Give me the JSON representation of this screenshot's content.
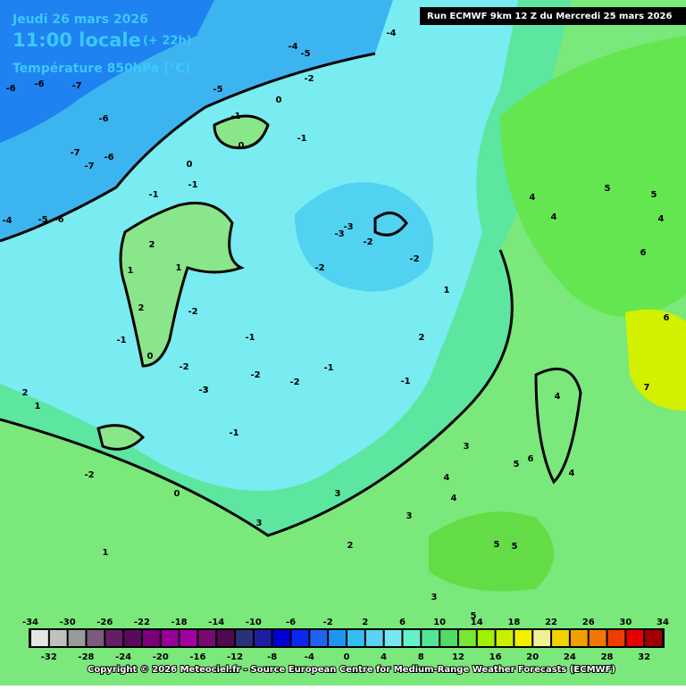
{
  "header": {
    "date": "Jeudi 26 mars 2026",
    "time": "11:00 locale",
    "offset": "(+ 22h)",
    "field": "Température 850hPa (°C)",
    "run": "Run ECMWF 9km 12 Z du Mercredi 25 mars 2026"
  },
  "map_labels": [
    -6,
    -6,
    -7,
    -6,
    -7,
    -7,
    -6,
    -5,
    -6,
    -4,
    -5,
    -4,
    -5,
    -4,
    -2,
    -1,
    0,
    -1,
    0,
    -1,
    0,
    -1,
    -2,
    -3,
    -3,
    -2,
    -2,
    -3,
    -1,
    -2,
    0,
    1,
    2,
    2,
    1,
    0,
    -1,
    -2,
    -1,
    -2,
    -3,
    -1,
    -2,
    -1,
    -2,
    1,
    2,
    3,
    3,
    4,
    4,
    5,
    4,
    5,
    6,
    6,
    4,
    5,
    3,
    4,
    5,
    6,
    7,
    3,
    2,
    1,
    1,
    2,
    3,
    4,
    5,
    4,
    5
  ],
  "colorbar": {
    "range": [
      -34,
      34
    ],
    "top_ticks": [
      -34,
      -30,
      -26,
      -22,
      -18,
      -14,
      -10,
      -6,
      -2,
      2,
      6,
      10,
      14,
      18,
      22,
      26,
      30,
      34
    ],
    "bottom_ticks": [
      -32,
      -28,
      -24,
      -20,
      -16,
      -12,
      -8,
      -4,
      0,
      4,
      8,
      12,
      16,
      20,
      24,
      28,
      32
    ],
    "colors": [
      "#e6e6e6",
      "#c0c0c0",
      "#9a9a9a",
      "#7c5a7c",
      "#641e64",
      "#5a0a5a",
      "#7a007a",
      "#960096",
      "#a000a0",
      "#780a6e",
      "#500a50",
      "#283278",
      "#1e1ea0",
      "#0000d2",
      "#0a28f0",
      "#1e64f0",
      "#1e96f0",
      "#32bef0",
      "#5ad2f0",
      "#78e6f0",
      "#64f0c8",
      "#50e696",
      "#50dc64",
      "#78e632",
      "#a0f000",
      "#c8f000",
      "#f0f000",
      "#f0f096",
      "#f0d200",
      "#f0a000",
      "#f07800",
      "#f03c00",
      "#e60000",
      "#a00000"
    ]
  },
  "footer": {
    "copyright": "Copyright © 2026 Meteociel.fr - Source European Centre for Medium-Range Weather Forecasts (ECMWF)"
  }
}
